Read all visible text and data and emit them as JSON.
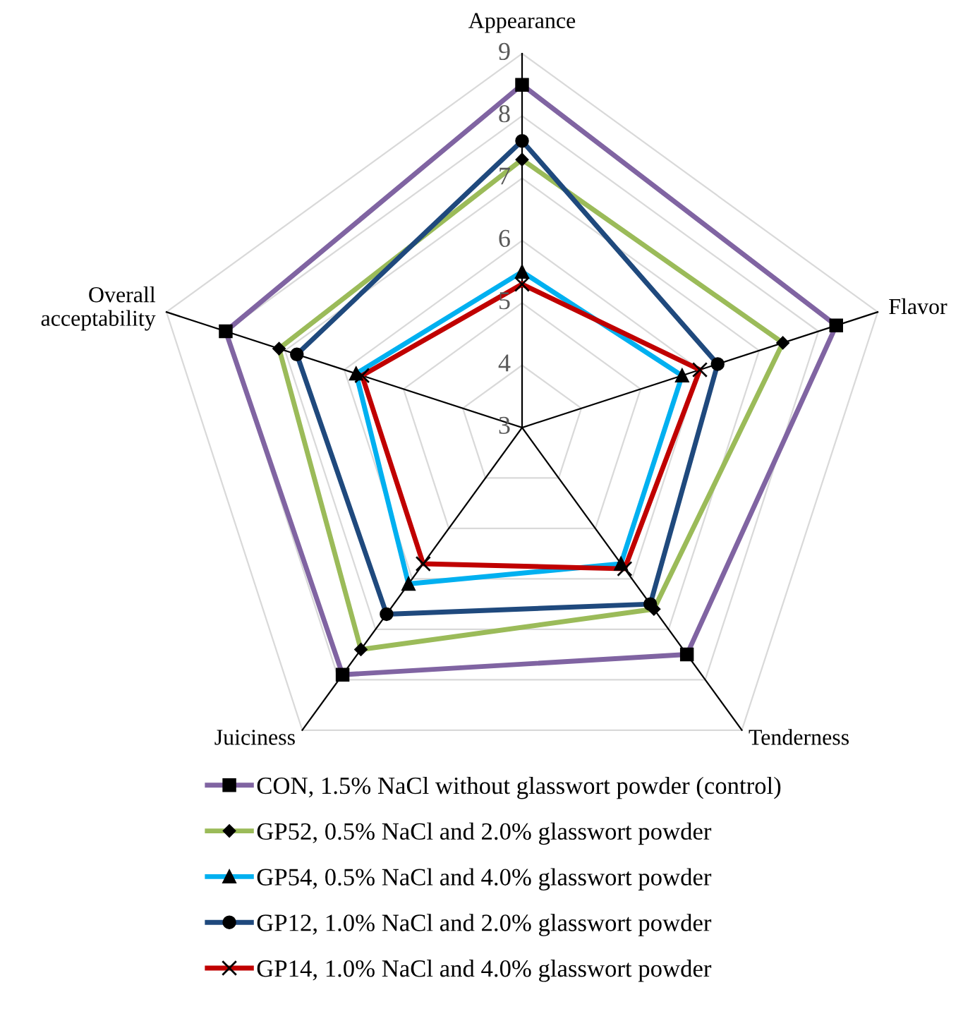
{
  "chart_data": {
    "type": "radar",
    "categories": [
      "Appearance",
      "Flavor",
      "Tenderness",
      "Juiciness",
      "Overall\nacceptability"
    ],
    "ylim": [
      3,
      9
    ],
    "yticks": [
      3,
      4,
      5,
      6,
      7,
      8,
      9
    ],
    "grid": true,
    "legend": "bottom",
    "series": [
      {
        "name": "CON, 1.5% NaCl without glasswort powder (control)",
        "color": "#8064a2",
        "marker": "square",
        "values": [
          8.5,
          8.3,
          7.5,
          7.9,
          8.0
        ]
      },
      {
        "name": "GP52, 0.5% NaCl and 2.0% glasswort powder",
        "color": "#9bbb59",
        "marker": "diamond",
        "values": [
          7.3,
          7.4,
          6.6,
          7.4,
          7.1
        ]
      },
      {
        "name": "GP54, 0.5% NaCl and 4.0% glasswort powder",
        "color": "#00b0f0",
        "marker": "triangle",
        "values": [
          5.5,
          5.7,
          5.7,
          6.1,
          5.8
        ]
      },
      {
        "name": "GP12, 1.0% NaCl and 2.0% glasswort powder",
        "color": "#1f497d",
        "marker": "circle",
        "values": [
          7.6,
          6.3,
          6.5,
          6.7,
          6.8
        ]
      },
      {
        "name": "GP14, 1.0% NaCl and 4.0% glasswort powder",
        "color": "#c00000",
        "marker": "cross",
        "values": [
          5.3,
          6.0,
          5.8,
          5.7,
          5.7
        ]
      }
    ]
  }
}
